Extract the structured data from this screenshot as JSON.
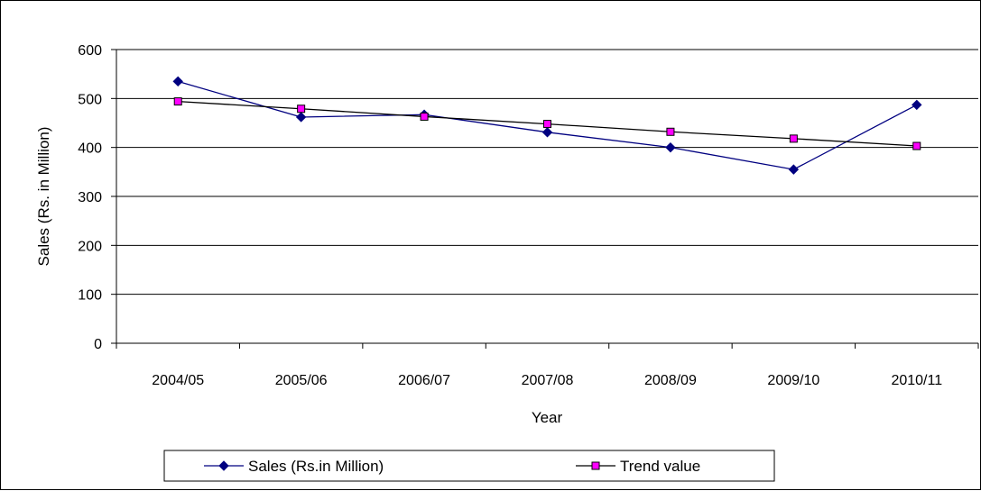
{
  "chart_data": {
    "type": "line",
    "categories": [
      "2004/05",
      "2005/06",
      "2006/07",
      "2007/08",
      "2008/09",
      "2009/10",
      "2010/11"
    ],
    "series": [
      {
        "name": "Sales (Rs.in Million)",
        "values": [
          535,
          462,
          467,
          431,
          400,
          355,
          487
        ],
        "color": "#000080",
        "marker": "diamond"
      },
      {
        "name": "Trend value",
        "values": [
          494,
          479,
          463,
          448,
          432,
          418,
          403
        ],
        "color": "#000000",
        "marker_fill": "#ff00ff",
        "marker": "square"
      }
    ],
    "title": "",
    "xlabel": "Year",
    "ylabel": "Sales (Rs. in Million)",
    "ylim": [
      0,
      600
    ],
    "yticks": [
      0,
      100,
      200,
      300,
      400,
      500,
      600
    ],
    "grid": "horizontal",
    "legend_position": "bottom"
  }
}
